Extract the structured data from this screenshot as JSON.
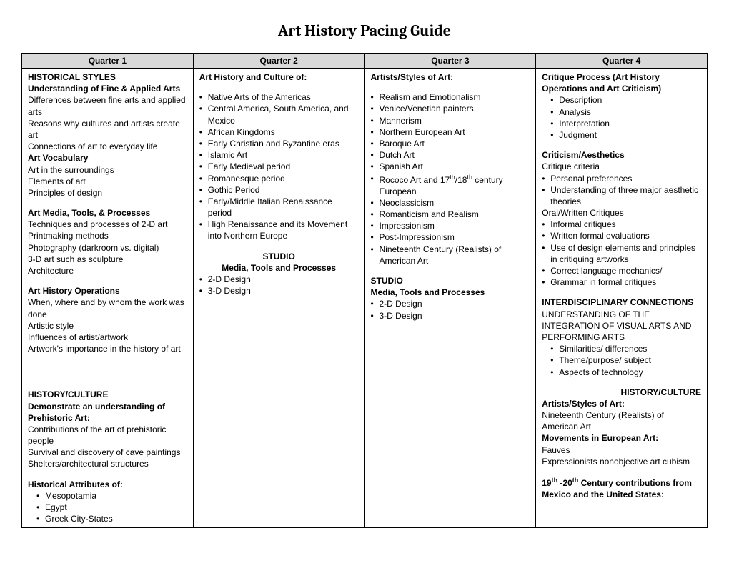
{
  "title": "Art History Pacing Guide",
  "headers": [
    "Quarter 1",
    "Quarter 2",
    "Quarter 3",
    "Quarter 4"
  ],
  "q1": {
    "h1": "HISTORICAL STYLES",
    "h2": "Understanding of Fine & Applied Arts",
    "lines1": [
      "Differences between fine arts and applied arts",
      "Reasons why cultures and artists create art",
      "Connections of art to everyday life"
    ],
    "h3": "Art Vocabulary",
    "lines2": [
      "Art in the surroundings",
      "Elements of art",
      "Principles of design"
    ],
    "h4": "Art Media, Tools, & Processes",
    "lines3": [
      "Techniques and processes of 2-D art",
      "Printmaking methods",
      "Photography (darkroom vs. digital)",
      "3-D art such as sculpture",
      "Architecture"
    ],
    "h5": "Art History Operations",
    "lines4": [
      "When, where and by whom the work was done",
      "Artistic style",
      "Influences of artist/artwork",
      "Artwork's importance in the history of art"
    ],
    "h6": "HISTORY/CULTURE",
    "h7": "Demonstrate an understanding of Prehistoric Art:",
    "lines5": [
      "Contributions of the art of prehistoric people",
      "Survival and discovery of cave paintings",
      "Shelters/architectural structures"
    ],
    "h8": "Historical Attributes of:",
    "bullets6": [
      "Mesopotamia",
      "Egypt",
      "Greek City-States"
    ]
  },
  "q2": {
    "h1": "Art History and Culture of:",
    "bullets1": [
      "Native Arts of the Americas",
      "Central America, South America, and Mexico",
      "African Kingdoms",
      "Early Christian and Byzantine eras",
      "Islamic Art",
      "Early Medieval period",
      "Romanesque period",
      "Gothic Period",
      "Early/Middle Italian Renaissance period",
      "High Renaissance and its Movement into Northern Europe"
    ],
    "h2": "STUDIO",
    "h3": "Media, Tools and Processes",
    "bullets2": [
      "2-D Design",
      "3-D Design"
    ]
  },
  "q3": {
    "h1": "Artists/Styles of Art:",
    "bullets1": [
      "Realism and Emotionalism",
      "Venice/Venetian painters",
      "Mannerism",
      "Northern European Art",
      "Baroque Art",
      "Dutch Art",
      "Spanish Art"
    ],
    "rococo_pre": "Rococo Art and 17",
    "rococo_sup1": "th",
    "rococo_mid": "/18",
    "rococo_sup2": "th",
    "rococo_post": " century European",
    "bullets2": [
      "Neoclassicism",
      "Romanticism and Realism",
      "Impressionism",
      "Post-Impressionism",
      "Nineteenth Century (Realists) of American Art"
    ],
    "h2": "STUDIO",
    "h3": "Media, Tools and Processes",
    "bullets3": [
      "2-D Design",
      "3-D Design"
    ]
  },
  "q4": {
    "h1": "Critique Process (Art History Operations and Art Criticism)",
    "bullets1": [
      "Description",
      "Analysis",
      "Interpretation",
      "Judgment"
    ],
    "h2": "Criticism/Aesthetics",
    "line1": "Critique criteria",
    "bullets2": [
      "Personal preferences",
      "Understanding of three major aesthetic theories"
    ],
    "line2": "Oral/Written Critiques",
    "bullets3": [
      "Informal critiques",
      "Written formal evaluations",
      "Use of design elements and principles in critiquing artworks",
      "Correct language mechanics/",
      "Grammar in formal critiques"
    ],
    "h3": "INTERDISCIPLINARY CONNECTIONS",
    "line3": "UNDERSTANDING OF THE INTEGRATION OF VISUAL ARTS AND PERFORMING ARTS",
    "bullets4": [
      "Similarities/ differences",
      "Theme/purpose/ subject",
      "Aspects of technology"
    ],
    "h4": "HISTORY/CULTURE",
    "h5": "Artists/Styles of Art:",
    "line4": "Nineteenth Century (Realists) of American Art",
    "h6": "Movements in European Art:",
    "line5": "Fauves",
    "line6": "Expressionists nonobjective art cubism",
    "cent_pre": "19",
    "cent_sup1": "th",
    "cent_mid": " -20",
    "cent_sup2": "th",
    "cent_post": " Century contributions from Mexico and the United States:"
  }
}
